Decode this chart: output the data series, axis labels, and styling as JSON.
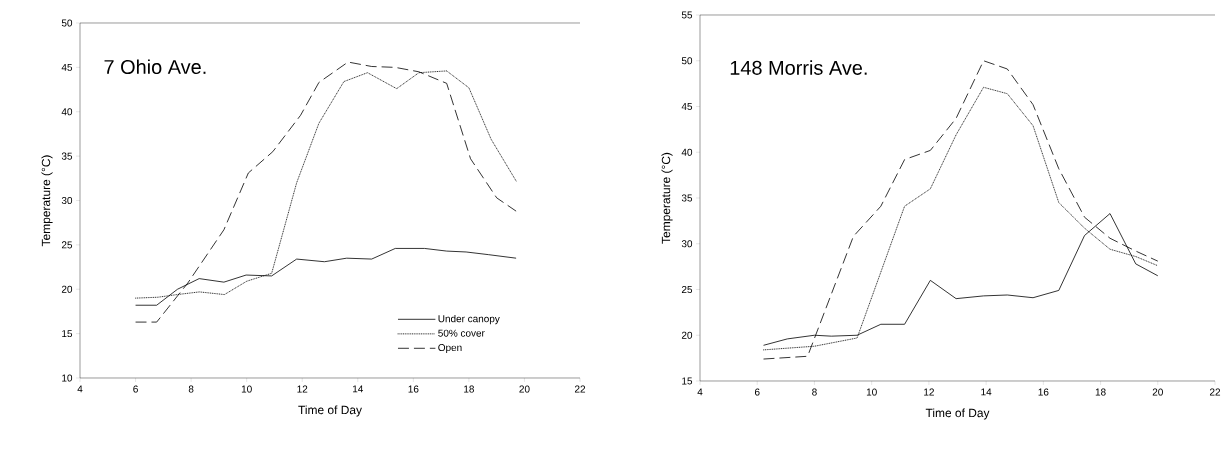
{
  "chart_data": [
    {
      "type": "line",
      "title": "7 Ohio Ave.",
      "xlabel": "Time of Day",
      "ylabel": "Temperature (°C)",
      "xlim": [
        4,
        22
      ],
      "xticks": [
        4,
        6,
        8,
        10,
        12,
        14,
        16,
        18,
        20,
        22
      ],
      "ylim": [
        10,
        50
      ],
      "yticks": [
        10,
        15,
        20,
        25,
        30,
        35,
        40,
        45,
        50
      ],
      "legend": "bottom right",
      "grid": false,
      "marker": "none",
      "series": [
        {
          "name": "Under canopy",
          "color": "#000000",
          "line_style": "solid",
          "x": [
            6.0,
            6.76,
            7.51,
            8.29,
            9.18,
            9.98,
            10.9,
            11.8,
            12.8,
            13.6,
            14.5,
            15.35,
            16.4,
            17.2,
            17.9,
            18.7,
            19.7
          ],
          "values": [
            18.2,
            18.2,
            20.0,
            21.2,
            20.8,
            21.6,
            21.5,
            23.4,
            23.1,
            23.5,
            23.4,
            24.6,
            24.6,
            24.3,
            24.2,
            23.9,
            23.5
          ]
        },
        {
          "name": "50% cover",
          "color": "#000000",
          "line_style": "dotted",
          "x": [
            6.0,
            6.8,
            7.5,
            8.3,
            9.2,
            10.0,
            10.9,
            11.8,
            12.6,
            13.5,
            14.35,
            15.4,
            16.2,
            17.2,
            18.0,
            18.8,
            19.7
          ],
          "values": [
            19.0,
            19.1,
            19.4,
            19.7,
            19.4,
            20.9,
            21.8,
            32.0,
            38.7,
            43.4,
            44.4,
            42.6,
            44.4,
            44.6,
            42.7,
            36.9,
            32.2
          ]
        },
        {
          "name": "Open",
          "color": "#000000",
          "line_style": "dashed",
          "x": [
            6.0,
            6.76,
            7.88,
            9.18,
            10.06,
            10.94,
            11.94,
            12.6,
            13.65,
            14.5,
            15.35,
            16.2,
            17.2,
            18.06,
            19.0,
            19.7
          ],
          "values": [
            16.3,
            16.3,
            20.7,
            26.7,
            33.1,
            35.5,
            39.6,
            43.3,
            45.6,
            45.1,
            45.0,
            44.5,
            43.2,
            34.7,
            30.3,
            28.8
          ]
        }
      ]
    },
    {
      "type": "line",
      "title": "148 Morris Ave.",
      "xlabel": "Time of Day",
      "ylabel": "Temperature (°C)",
      "xlim": [
        4,
        22
      ],
      "xticks": [
        4,
        6,
        8,
        10,
        12,
        14,
        16,
        18,
        20,
        22
      ],
      "ylim": [
        15,
        55
      ],
      "yticks": [
        15,
        20,
        25,
        30,
        35,
        40,
        45,
        50,
        55
      ],
      "legend": false,
      "grid": false,
      "marker": "none",
      "series": [
        {
          "color": "#000000",
          "line_style": "solid",
          "x": [
            6.22,
            7.05,
            8.0,
            8.59,
            9.49,
            10.32,
            11.15,
            12.05,
            12.95,
            13.91,
            14.74,
            15.64,
            16.54,
            17.44,
            18.33,
            19.23,
            20.0
          ],
          "values": [
            18.9,
            19.6,
            20.0,
            19.9,
            20.0,
            21.2,
            21.2,
            26.0,
            24.0,
            24.3,
            24.4,
            24.1,
            24.9,
            30.9,
            33.3,
            27.8,
            26.5
          ]
        },
        {
          "color": "#000000",
          "line_style": "dotted",
          "x": [
            6.22,
            8.0,
            9.49,
            11.15,
            12.05,
            12.95,
            13.91,
            14.74,
            15.64,
            16.54,
            17.44,
            18.33,
            19.23,
            20.0
          ],
          "values": [
            18.4,
            18.8,
            19.7,
            34.1,
            36.0,
            41.9,
            47.1,
            46.4,
            42.9,
            34.5,
            31.7,
            29.4,
            28.6,
            27.6
          ]
        },
        {
          "color": "#000000",
          "line_style": "dashed",
          "x": [
            6.22,
            7.76,
            9.36,
            10.32,
            11.15,
            12.05,
            12.95,
            13.91,
            14.74,
            15.64,
            16.54,
            17.44,
            18.33,
            19.23,
            20.0
          ],
          "values": [
            17.4,
            17.7,
            30.8,
            34.1,
            39.2,
            40.2,
            43.7,
            50.0,
            49.1,
            45.2,
            38.2,
            32.9,
            30.6,
            29.2,
            28.1
          ]
        }
      ]
    }
  ]
}
